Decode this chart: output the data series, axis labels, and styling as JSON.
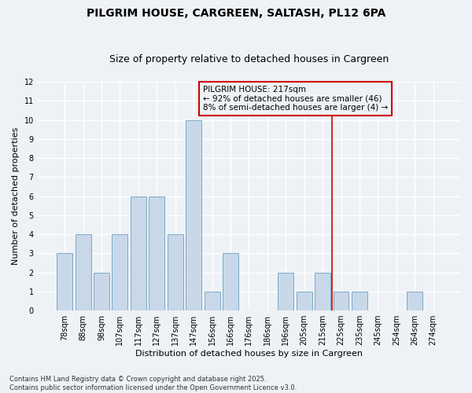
{
  "title": "PILGRIM HOUSE, CARGREEN, SALTASH, PL12 6PA",
  "subtitle": "Size of property relative to detached houses in Cargreen",
  "xlabel": "Distribution of detached houses by size in Cargreen",
  "ylabel": "Number of detached properties",
  "categories": [
    "78sqm",
    "88sqm",
    "98sqm",
    "107sqm",
    "117sqm",
    "127sqm",
    "137sqm",
    "147sqm",
    "156sqm",
    "166sqm",
    "176sqm",
    "186sqm",
    "196sqm",
    "205sqm",
    "215sqm",
    "225sqm",
    "235sqm",
    "245sqm",
    "254sqm",
    "264sqm",
    "274sqm"
  ],
  "values": [
    3,
    4,
    2,
    4,
    6,
    6,
    4,
    10,
    1,
    3,
    0,
    0,
    2,
    1,
    2,
    1,
    1,
    0,
    0,
    1,
    0
  ],
  "bar_color": "#c8d8e8",
  "bar_edge_color": "#7aaac8",
  "vline_x_index": 14.5,
  "vline_color": "#cc0000",
  "annotation_text": "PILGRIM HOUSE: 217sqm\n← 92% of detached houses are smaller (46)\n8% of semi-detached houses are larger (4) →",
  "ylim": [
    0,
    12
  ],
  "yticks": [
    0,
    1,
    2,
    3,
    4,
    5,
    6,
    7,
    8,
    9,
    10,
    11,
    12
  ],
  "footer": "Contains HM Land Registry data © Crown copyright and database right 2025.\nContains public sector information licensed under the Open Government Licence v3.0.",
  "bg_color": "#eef2f6",
  "grid_color": "#ffffff",
  "title_fontsize": 10,
  "subtitle_fontsize": 9,
  "tick_fontsize": 7,
  "ylabel_fontsize": 8,
  "xlabel_fontsize": 8,
  "footer_fontsize": 6,
  "annot_fontsize": 7.5
}
